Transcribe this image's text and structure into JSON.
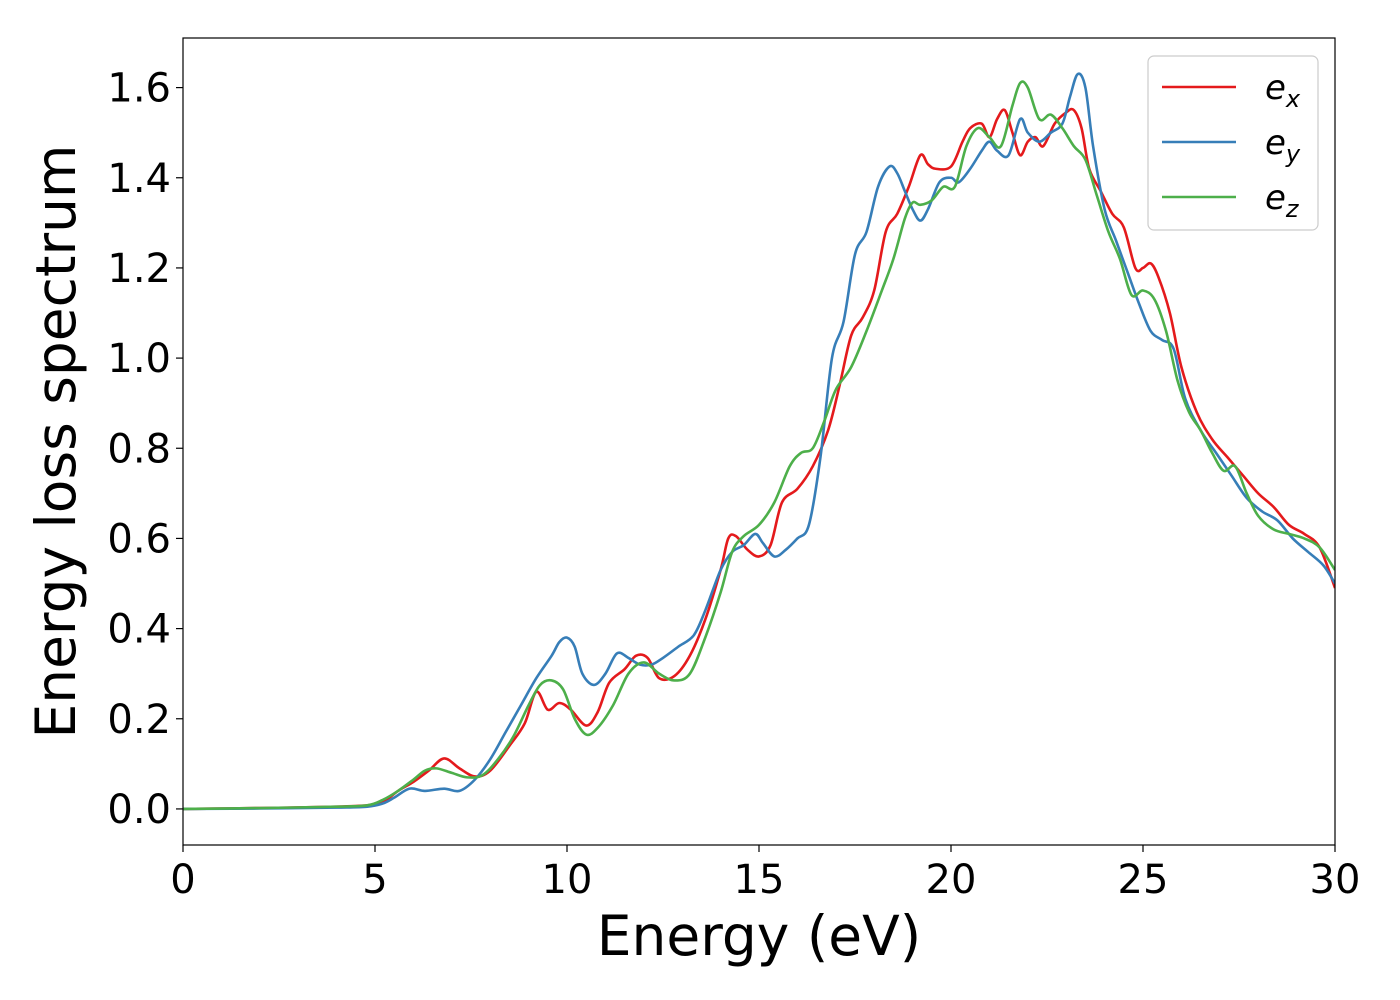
{
  "chart_data": {
    "type": "line",
    "xlabel": "Energy (eV)",
    "ylabel": "Energy loss spectrum",
    "xlim": [
      0,
      30
    ],
    "ylim": [
      -0.08,
      1.71
    ],
    "xticks": [
      0,
      5,
      10,
      15,
      20,
      25,
      30
    ],
    "xtick_labels": [
      "0",
      "5",
      "10",
      "15",
      "20",
      "25",
      "30"
    ],
    "yticks": [
      0.0,
      0.2,
      0.4,
      0.6,
      0.8,
      1.0,
      1.2,
      1.4,
      1.6
    ],
    "ytick_labels": [
      "0.0",
      "0.2",
      "0.4",
      "0.6",
      "0.8",
      "1.0",
      "1.2",
      "1.4",
      "1.6"
    ],
    "grid": false,
    "legend_position": "top-right",
    "series": [
      {
        "name": "e_x",
        "label_base": "e",
        "label_sub": "x",
        "color": "#e41a1c",
        "x": [
          0,
          2,
          4,
          4.8,
          5.2,
          5.6,
          6.0,
          6.4,
          6.8,
          7.2,
          7.6,
          8.0,
          8.5,
          8.9,
          9.2,
          9.5,
          9.8,
          10.1,
          10.5,
          10.8,
          11.1,
          11.5,
          11.8,
          12.1,
          12.4,
          12.8,
          13.2,
          13.6,
          14.0,
          14.2,
          14.4,
          14.7,
          15.0,
          15.3,
          15.6,
          16.0,
          16.4,
          16.8,
          17.1,
          17.4,
          17.7,
          18.0,
          18.3,
          18.6,
          18.9,
          19.2,
          19.4,
          19.6,
          20.0,
          20.3,
          20.5,
          20.8,
          21.0,
          21.2,
          21.4,
          21.6,
          21.8,
          22.0,
          22.2,
          22.4,
          22.7,
          23.0,
          23.2,
          23.4,
          23.6,
          23.9,
          24.2,
          24.5,
          24.8,
          25.0,
          25.2,
          25.4,
          25.7,
          26.0,
          26.4,
          26.8,
          27.2,
          27.6,
          28.0,
          28.4,
          28.8,
          29.2,
          29.6,
          30.0
        ],
        "y": [
          0.0,
          0.002,
          0.005,
          0.008,
          0.015,
          0.04,
          0.06,
          0.085,
          0.112,
          0.09,
          0.072,
          0.085,
          0.14,
          0.19,
          0.26,
          0.22,
          0.235,
          0.22,
          0.185,
          0.215,
          0.28,
          0.31,
          0.34,
          0.335,
          0.29,
          0.295,
          0.34,
          0.42,
          0.53,
          0.6,
          0.605,
          0.575,
          0.56,
          0.585,
          0.68,
          0.71,
          0.76,
          0.84,
          0.94,
          1.05,
          1.09,
          1.15,
          1.28,
          1.32,
          1.38,
          1.45,
          1.43,
          1.42,
          1.425,
          1.48,
          1.51,
          1.52,
          1.49,
          1.53,
          1.55,
          1.5,
          1.45,
          1.48,
          1.49,
          1.47,
          1.52,
          1.545,
          1.55,
          1.51,
          1.42,
          1.37,
          1.32,
          1.29,
          1.2,
          1.2,
          1.21,
          1.18,
          1.1,
          0.98,
          0.88,
          0.82,
          0.78,
          0.74,
          0.7,
          0.67,
          0.63,
          0.61,
          0.58,
          0.49
        ]
      },
      {
        "name": "e_y",
        "label_base": "e",
        "label_sub": "y",
        "color": "#377eb8",
        "x": [
          0,
          2,
          4,
          4.8,
          5.2,
          5.5,
          5.9,
          6.3,
          6.8,
          7.2,
          7.6,
          8.0,
          8.4,
          8.8,
          9.2,
          9.6,
          9.8,
          10.0,
          10.2,
          10.4,
          10.7,
          11.0,
          11.3,
          11.6,
          11.9,
          12.2,
          12.5,
          12.9,
          13.3,
          13.6,
          14.0,
          14.3,
          14.6,
          14.9,
          15.1,
          15.4,
          15.7,
          16.0,
          16.3,
          16.6,
          16.9,
          17.2,
          17.5,
          17.8,
          18.1,
          18.4,
          18.6,
          18.8,
          19.0,
          19.2,
          19.4,
          19.7,
          20.0,
          20.2,
          20.5,
          20.8,
          21.0,
          21.2,
          21.5,
          21.8,
          22.0,
          22.3,
          22.6,
          22.9,
          23.1,
          23.3,
          23.5,
          23.7,
          24.0,
          24.3,
          24.6,
          24.9,
          25.2,
          25.5,
          25.8,
          26.1,
          26.5,
          26.9,
          27.3,
          27.7,
          28.1,
          28.5,
          28.9,
          29.3,
          29.7,
          30.0
        ],
        "y": [
          0.0,
          0.001,
          0.003,
          0.005,
          0.012,
          0.025,
          0.045,
          0.04,
          0.045,
          0.04,
          0.065,
          0.11,
          0.17,
          0.23,
          0.29,
          0.34,
          0.37,
          0.38,
          0.36,
          0.3,
          0.275,
          0.3,
          0.345,
          0.335,
          0.32,
          0.32,
          0.335,
          0.36,
          0.385,
          0.44,
          0.53,
          0.57,
          0.585,
          0.61,
          0.59,
          0.56,
          0.575,
          0.6,
          0.63,
          0.78,
          1.0,
          1.08,
          1.23,
          1.28,
          1.38,
          1.425,
          1.41,
          1.37,
          1.33,
          1.305,
          1.33,
          1.39,
          1.4,
          1.39,
          1.42,
          1.46,
          1.48,
          1.46,
          1.45,
          1.53,
          1.5,
          1.48,
          1.5,
          1.52,
          1.58,
          1.63,
          1.6,
          1.47,
          1.33,
          1.26,
          1.19,
          1.12,
          1.06,
          1.04,
          1.02,
          0.91,
          0.84,
          0.79,
          0.74,
          0.69,
          0.66,
          0.64,
          0.6,
          0.57,
          0.54,
          0.5
        ]
      },
      {
        "name": "e_z",
        "label_base": "e",
        "label_sub": "z",
        "color": "#4daf4a",
        "x": [
          0,
          2,
          4,
          4.8,
          5.2,
          5.6,
          6.0,
          6.3,
          6.6,
          7.0,
          7.4,
          7.8,
          8.2,
          8.6,
          9.0,
          9.3,
          9.6,
          9.9,
          10.2,
          10.5,
          10.8,
          11.2,
          11.6,
          12.0,
          12.4,
          12.8,
          13.2,
          13.6,
          14.0,
          14.3,
          14.6,
          15.0,
          15.4,
          15.8,
          16.1,
          16.4,
          16.7,
          17.0,
          17.4,
          17.8,
          18.2,
          18.5,
          18.8,
          19.0,
          19.2,
          19.5,
          19.8,
          20.1,
          20.4,
          20.7,
          21.0,
          21.3,
          21.6,
          21.8,
          22.0,
          22.3,
          22.6,
          22.9,
          23.2,
          23.5,
          23.8,
          24.1,
          24.4,
          24.7,
          25.0,
          25.3,
          25.6,
          25.9,
          26.2,
          26.5,
          26.8,
          27.1,
          27.4,
          27.7,
          28.0,
          28.4,
          28.8,
          29.2,
          29.6,
          30.0
        ],
        "y": [
          0.0,
          0.002,
          0.005,
          0.008,
          0.02,
          0.04,
          0.065,
          0.085,
          0.09,
          0.08,
          0.07,
          0.075,
          0.11,
          0.16,
          0.23,
          0.275,
          0.285,
          0.265,
          0.2,
          0.165,
          0.18,
          0.23,
          0.3,
          0.325,
          0.3,
          0.285,
          0.3,
          0.38,
          0.48,
          0.57,
          0.605,
          0.63,
          0.68,
          0.76,
          0.79,
          0.8,
          0.86,
          0.93,
          0.98,
          1.06,
          1.15,
          1.22,
          1.31,
          1.345,
          1.34,
          1.35,
          1.38,
          1.38,
          1.47,
          1.51,
          1.49,
          1.47,
          1.56,
          1.61,
          1.6,
          1.53,
          1.54,
          1.51,
          1.47,
          1.44,
          1.36,
          1.28,
          1.22,
          1.14,
          1.15,
          1.13,
          1.06,
          0.95,
          0.88,
          0.84,
          0.79,
          0.75,
          0.76,
          0.7,
          0.65,
          0.62,
          0.61,
          0.6,
          0.58,
          0.53
        ]
      }
    ]
  }
}
